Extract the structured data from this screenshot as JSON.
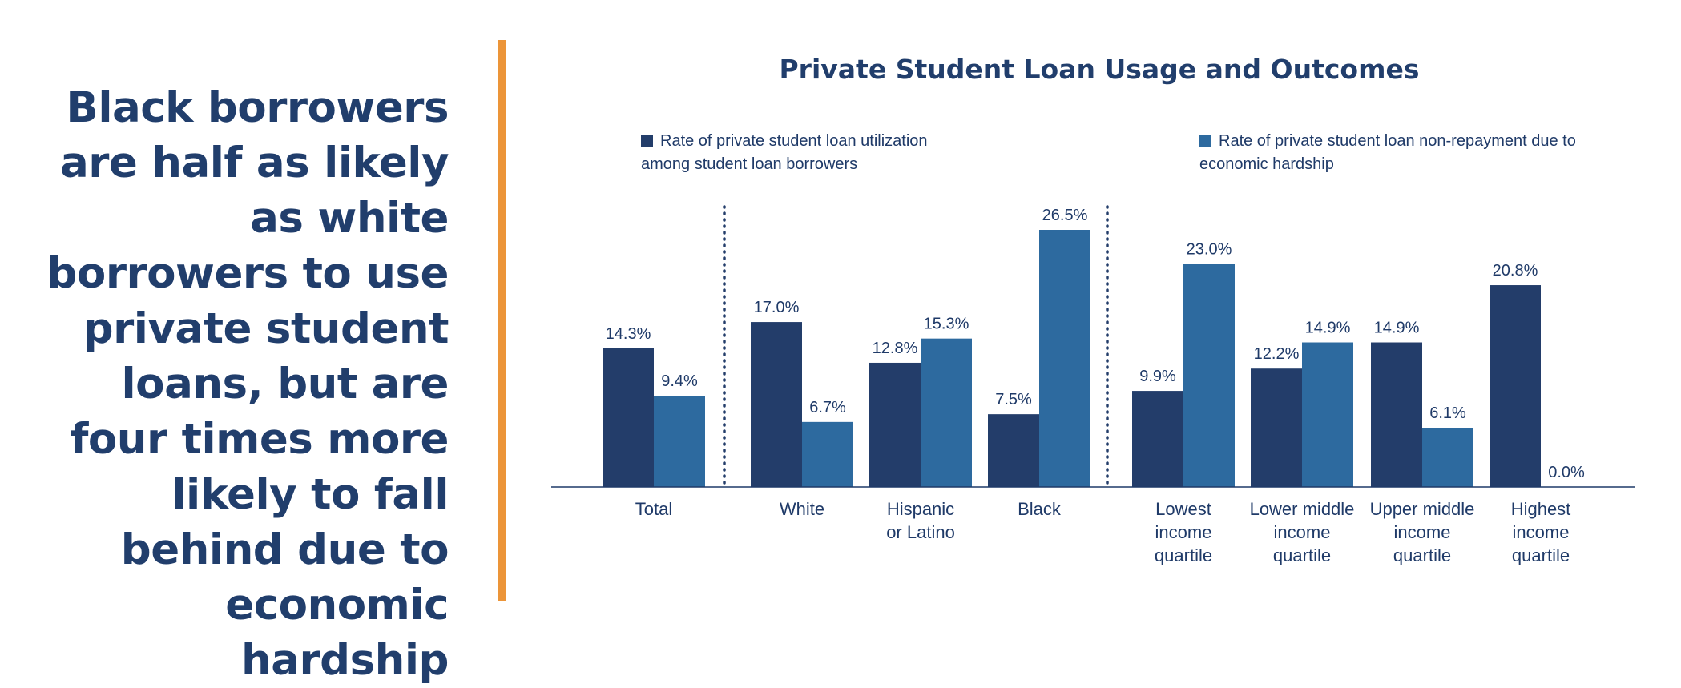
{
  "headline": "Black borrowers are half as likely as white borrowers to use private student loans, but are four times more likely to fall behind due to economic hardship",
  "colors": {
    "series1": "#233d6a",
    "series2": "#2d6a9f",
    "divider": "#ec9539",
    "text": "#1f3a68"
  },
  "chart_data": {
    "type": "bar",
    "title": "Private Student Loan Usage and Outcomes",
    "categories": [
      [
        "Total"
      ],
      [
        "White"
      ],
      [
        "Hispanic",
        "or Latino"
      ],
      [
        "Black"
      ],
      [
        "Lowest",
        "income",
        "quartile"
      ],
      [
        "Lower middle",
        "income",
        "quartile"
      ],
      [
        "Upper middle",
        "income",
        "quartile"
      ],
      [
        "Highest",
        "income",
        "quartile"
      ]
    ],
    "series": [
      {
        "name": "Rate of private student loan utilization among student loan borrowers",
        "legend_lines": [
          "Rate of private student loan utilization",
          "among student loan borrowers"
        ],
        "values": [
          14.3,
          17.0,
          12.8,
          7.5,
          9.9,
          12.2,
          14.9,
          20.8
        ],
        "labels": [
          "14.3%",
          "17.0%",
          "12.8%",
          "7.5%",
          "9.9%",
          "12.2%",
          "14.9%",
          "20.8%"
        ]
      },
      {
        "name": "Rate of private student loan non-repayment due to economic hardship",
        "legend_lines": [
          "Rate of private student loan non-repayment due to",
          "economic hardship"
        ],
        "values": [
          9.4,
          6.7,
          15.3,
          26.5,
          23.0,
          14.9,
          6.1,
          0.0
        ],
        "labels": [
          "9.4%",
          "6.7%",
          "15.3%",
          "26.5%",
          "23.0%",
          "14.9%",
          "6.1%",
          "0.0%"
        ]
      }
    ],
    "ylim": [
      0,
      30
    ],
    "grid": false,
    "legend": "top",
    "group_separators_after": [
      0,
      3
    ]
  }
}
